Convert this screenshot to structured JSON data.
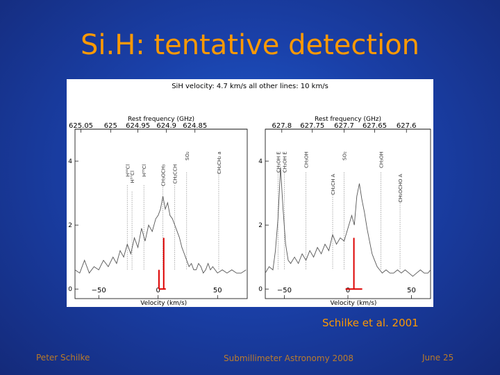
{
  "slide": {
    "title": "Si.H: tentative detection",
    "citation": "Schilke et al. 2001",
    "footer_left": "Peter Schilke",
    "footer_center": "Submillimeter Astronomy 2008",
    "footer_right": "June 25"
  },
  "figure": {
    "header": "SiH velocity: 4.7 km/s   all other lines: 10 km/s",
    "colors": {
      "accent": "#ff9900",
      "marker": "#dd0000",
      "trace": "#555555"
    }
  },
  "chart_data": [
    {
      "type": "line",
      "title": "Rest frequency (GHz)",
      "xlabel": "Velocity (km/s)",
      "ylabel": "",
      "xlim": [
        -70,
        75
      ],
      "ylim": [
        -0.3,
        5.0
      ],
      "x_ticks": [
        -50,
        0,
        50
      ],
      "y_ticks": [
        0,
        2,
        4
      ],
      "freq_ticks": [
        {
          "label": "625.05",
          "v": -65
        },
        {
          "label": "625",
          "v": -40
        },
        {
          "label": "624.95",
          "v": -17
        },
        {
          "label": "624.9",
          "v": 7
        },
        {
          "label": "624.85",
          "v": 31
        }
      ],
      "line_ids": [
        {
          "label": "H³⁵Cl",
          "v": -26,
          "top": 3.9
        },
        {
          "label": "H³⁷Cl",
          "v": -22,
          "top": 3.7
        },
        {
          "label": "H³⁵Cl",
          "v": -12,
          "top": 3.9
        },
        {
          "label": "CH₃OCH₃",
          "v": 4,
          "top": 3.9
        },
        {
          "label": "CH₂CCH",
          "v": 14,
          "top": 3.9
        },
        {
          "label": "SO₂",
          "v": 24,
          "top": 4.3
        },
        {
          "label": "CH₂CH₂ a",
          "v": 51,
          "top": 4.3
        }
      ],
      "marker": {
        "v": 4.7,
        "height": 1.6,
        "hfs_offset": -4,
        "hfs_height": 0.6
      },
      "series": [
        {
          "name": "spectrum",
          "x": [
            -70,
            -66,
            -62,
            -58,
            -54,
            -50,
            -46,
            -42,
            -38,
            -35,
            -32,
            -29,
            -26,
            -23,
            -20,
            -17,
            -14,
            -11,
            -8,
            -5,
            -2,
            0,
            2,
            4,
            6,
            8,
            10,
            12,
            14,
            16,
            18,
            20,
            22,
            24,
            26,
            28,
            30,
            32,
            34,
            36,
            38,
            40,
            42,
            44,
            46,
            48,
            50,
            54,
            58,
            62,
            66,
            70,
            74
          ],
          "y": [
            0.6,
            0.5,
            0.9,
            0.5,
            0.7,
            0.6,
            0.9,
            0.7,
            1.0,
            0.8,
            1.2,
            1.0,
            1.4,
            1.1,
            1.6,
            1.3,
            1.9,
            1.5,
            2.0,
            1.8,
            2.2,
            2.3,
            2.5,
            2.9,
            2.5,
            2.7,
            2.3,
            2.2,
            2.0,
            1.8,
            1.6,
            1.3,
            1.1,
            0.9,
            0.7,
            0.8,
            0.6,
            0.6,
            0.8,
            0.7,
            0.5,
            0.6,
            0.8,
            0.6,
            0.7,
            0.6,
            0.5,
            0.6,
            0.5,
            0.6,
            0.5,
            0.5,
            0.6
          ]
        }
      ]
    },
    {
      "type": "line",
      "title": "Rest frequency (GHz)",
      "xlabel": "Velocity (km/s)",
      "ylabel": "",
      "xlim": [
        -65,
        65
      ],
      "ylim": [
        -0.3,
        5.0
      ],
      "x_ticks": [
        -50,
        0,
        50
      ],
      "y_ticks": [
        0,
        2,
        4
      ],
      "freq_ticks": [
        {
          "label": "627.8",
          "v": -52
        },
        {
          "label": "627.75",
          "v": -28
        },
        {
          "label": "627.7",
          "v": -3
        },
        {
          "label": "627.65",
          "v": 21
        },
        {
          "label": "627.6",
          "v": 46
        }
      ],
      "line_ids": [
        {
          "label": "CH₃OH E",
          "v": -55,
          "top": 4.3
        },
        {
          "label": "CH₃OH E",
          "v": -50,
          "top": 4.3
        },
        {
          "label": "CH₃OH",
          "v": -33,
          "top": 4.3
        },
        {
          "label": "CH₂CH A",
          "v": -12,
          "top": 3.6
        },
        {
          "label": "SO₂",
          "v": -3,
          "top": 4.3
        },
        {
          "label": "CH₃OH",
          "v": 26,
          "top": 4.3
        },
        {
          "label": "CH₃OCHO A",
          "v": 41,
          "top": 3.6
        }
      ],
      "marker": {
        "v": 4.7,
        "height": 1.6,
        "hfs_offset": 0,
        "hfs_height": 0.0
      },
      "series": [
        {
          "name": "spectrum",
          "x": [
            -65,
            -62,
            -59,
            -57,
            -55,
            -53,
            -51,
            -49,
            -47,
            -45,
            -42,
            -39,
            -36,
            -33,
            -30,
            -27,
            -24,
            -21,
            -18,
            -15,
            -12,
            -9,
            -6,
            -3,
            0,
            3,
            5,
            7,
            9,
            11,
            13,
            15,
            17,
            19,
            21,
            23,
            25,
            27,
            30,
            33,
            36,
            39,
            42,
            45,
            48,
            51,
            54,
            57,
            60,
            63,
            65
          ],
          "y": [
            0.5,
            0.7,
            0.6,
            1.2,
            2.2,
            3.8,
            2.5,
            1.4,
            0.9,
            0.8,
            1.0,
            0.8,
            1.1,
            0.9,
            1.2,
            1.0,
            1.3,
            1.1,
            1.4,
            1.2,
            1.7,
            1.4,
            1.6,
            1.5,
            1.9,
            2.3,
            2.0,
            2.9,
            3.3,
            2.8,
            2.4,
            1.9,
            1.5,
            1.1,
            0.9,
            0.7,
            0.6,
            0.5,
            0.6,
            0.5,
            0.5,
            0.6,
            0.5,
            0.6,
            0.5,
            0.4,
            0.5,
            0.6,
            0.5,
            0.5,
            0.6
          ]
        }
      ]
    }
  ]
}
